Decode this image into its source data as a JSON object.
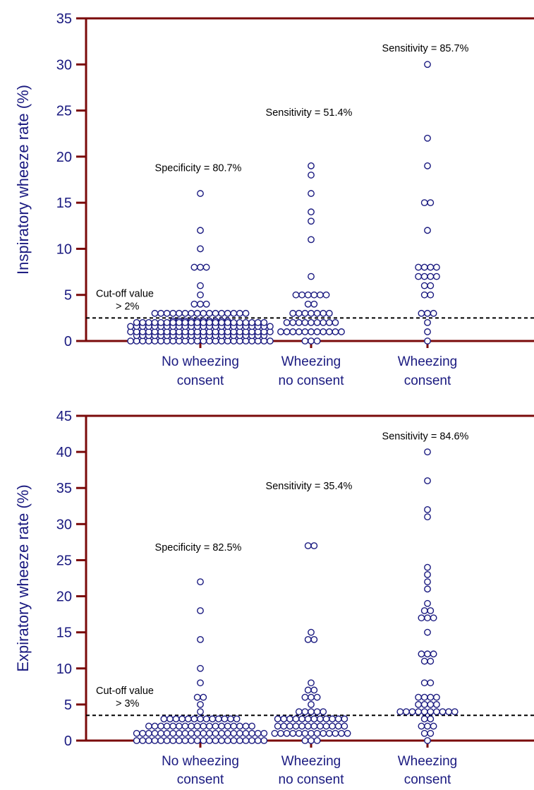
{
  "colors": {
    "axis": "#7a0a0a",
    "text": "#1a1a80",
    "marker": "#1a1a80",
    "cutoff": "#000000"
  },
  "chart_data": [
    {
      "type": "scatter",
      "ylabel": "Inspiratory wheeze rate (%)",
      "ylim": [
        0,
        35
      ],
      "yticks": [
        0,
        5,
        10,
        15,
        20,
        25,
        30,
        35
      ],
      "categories": [
        "No wheezing\nconsent",
        "Wheezing\nno consent",
        "Wheezing\nconsent"
      ],
      "category_lines": [
        [
          "No wheezing",
          "consent"
        ],
        [
          "Wheezing",
          "no consent"
        ],
        [
          "Wheezing",
          "consent"
        ]
      ],
      "cutoff": 2.5,
      "series": [
        {
          "values": [
            16,
            12,
            10,
            8,
            8,
            8,
            6,
            5,
            4,
            4,
            4,
            3,
            3,
            3,
            3,
            3,
            3,
            3,
            3,
            3,
            3,
            3,
            3,
            3,
            3,
            3,
            3,
            2,
            2,
            2,
            2,
            2,
            2,
            2,
            2,
            2,
            2,
            2,
            2,
            2,
            2,
            2,
            2,
            2,
            2,
            2,
            2,
            2,
            2,
            1,
            1,
            1,
            1,
            1,
            1,
            1,
            1,
            1,
            1,
            1,
            1,
            1,
            1,
            1,
            1,
            1,
            1,
            1,
            1,
            1,
            1,
            1,
            1,
            1,
            1,
            1,
            1,
            1,
            1,
            1,
            1,
            1,
            1,
            1,
            1,
            1,
            1,
            1,
            1,
            1,
            1,
            1,
            1,
            1,
            1,
            1,
            1,
            1,
            1,
            1,
            1,
            1,
            1,
            1,
            1,
            1,
            1,
            0,
            0,
            0,
            0,
            0,
            0,
            0,
            0,
            0,
            0,
            0,
            0,
            0,
            0,
            0,
            0,
            0,
            0,
            0,
            0,
            0,
            0,
            0,
            0,
            0,
            0,
            0,
            0,
            0,
            0,
            0,
            0,
            0,
            0,
            0,
            0,
            0,
            0,
            0,
            0,
            0,
            0,
            0,
            0,
            0,
            0
          ]
        },
        {
          "values": [
            19,
            18,
            16,
            14,
            13,
            11,
            7,
            5,
            5,
            5,
            5,
            5,
            5,
            4,
            4,
            3,
            3,
            3,
            3,
            3,
            3,
            3,
            2,
            2,
            2,
            2,
            2,
            2,
            2,
            2,
            2,
            1,
            1,
            1,
            1,
            1,
            1,
            1,
            1,
            1,
            1,
            1,
            0,
            0,
            0
          ]
        },
        {
          "values": [
            30,
            22,
            19,
            15,
            15,
            12,
            8,
            8,
            8,
            8,
            7,
            7,
            7,
            7,
            6,
            6,
            5,
            5,
            3,
            3,
            3,
            2,
            1,
            0
          ]
        }
      ],
      "annotations": [
        {
          "text": "Specificity = 80.7%",
          "x": 0,
          "y": 18.8
        },
        {
          "text": "Sensitivity = 51.4%",
          "x": 1,
          "y": 24.8
        },
        {
          "text": "Sensitivity = 85.7%",
          "x": 2,
          "y": 31.8
        }
      ],
      "cutoff_label": [
        "Cut-off value",
        "> 2%"
      ]
    },
    {
      "type": "scatter",
      "ylabel": "Expiratory  wheeze rate (%)",
      "ylim": [
        0,
        45
      ],
      "yticks": [
        0,
        5,
        10,
        15,
        20,
        25,
        30,
        35,
        40,
        45
      ],
      "categories": [
        "No wheezing\nconsent",
        "Wheezing\nno consent",
        "Wheezing\nconsent"
      ],
      "category_lines": [
        [
          "No wheezing",
          "consent"
        ],
        [
          "Wheezing",
          "no consent"
        ],
        [
          "Wheezing",
          "consent"
        ]
      ],
      "cutoff": 3.5,
      "series": [
        {
          "values": [
            22,
            18,
            14,
            10,
            8,
            6,
            6,
            5,
            4,
            3,
            3,
            3,
            3,
            3,
            3,
            3,
            3,
            3,
            3,
            3,
            3,
            3,
            2,
            2,
            2,
            2,
            2,
            2,
            2,
            2,
            2,
            2,
            2,
            2,
            2,
            2,
            2,
            2,
            2,
            2,
            1,
            1,
            1,
            1,
            1,
            1,
            1,
            1,
            1,
            1,
            1,
            1,
            1,
            1,
            1,
            1,
            1,
            1,
            1,
            1,
            1,
            1,
            0,
            0,
            0,
            0,
            0,
            0,
            0,
            0,
            0,
            0,
            0,
            0,
            0,
            0,
            0,
            0,
            0,
            0,
            0,
            0,
            0,
            0
          ]
        },
        {
          "values": [
            27,
            27,
            15,
            14,
            14,
            8,
            7,
            7,
            6,
            6,
            6,
            5,
            4,
            4,
            4,
            4,
            4,
            3,
            3,
            3,
            3,
            3,
            3,
            3,
            3,
            3,
            3,
            3,
            3,
            2,
            2,
            2,
            2,
            2,
            2,
            2,
            2,
            2,
            2,
            2,
            2,
            1,
            1,
            1,
            1,
            1,
            1,
            1,
            1,
            1,
            1,
            1,
            1,
            1,
            0,
            0,
            0
          ]
        },
        {
          "values": [
            40,
            36,
            32,
            31,
            24,
            23,
            22,
            21,
            19,
            18,
            18,
            17,
            17,
            17,
            15,
            12,
            12,
            12,
            11,
            11,
            8,
            8,
            6,
            6,
            6,
            6,
            5,
            5,
            5,
            5,
            4,
            4,
            4,
            4,
            4,
            4,
            4,
            4,
            4,
            4,
            3,
            3,
            2,
            2,
            2,
            1,
            1,
            0
          ]
        }
      ],
      "annotations": [
        {
          "text": "Specificity = 82.5%",
          "x": 0,
          "y": 26.8
        },
        {
          "text": "Sensitivity = 35.4%",
          "x": 1,
          "y": 35.3
        },
        {
          "text": "Sensitivity = 84.6%",
          "x": 2,
          "y": 42.2
        }
      ],
      "cutoff_label": [
        "Cut-off value",
        "> 3%"
      ]
    }
  ]
}
